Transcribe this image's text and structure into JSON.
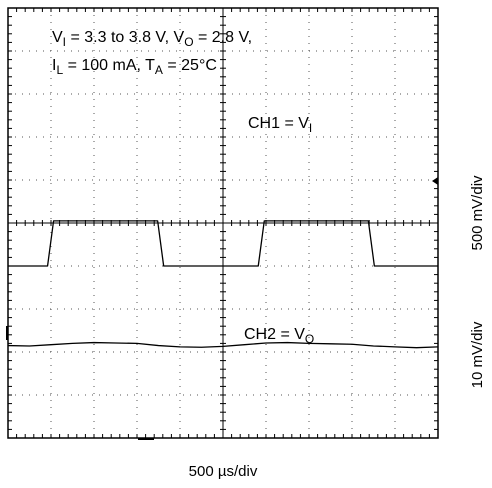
{
  "chart_data": {
    "type": "line",
    "title": "",
    "annotations": {
      "condition_line1": {
        "vi_sym": "V",
        "vi_sub": "I",
        "vi_range": " = 3.3  to 3.8 V, ",
        "vo_sym": "V",
        "vo_sub": "O",
        "vo_value": " = 2.8 V,"
      },
      "condition_line2": {
        "il_sym": "I",
        "il_sub": "L",
        "il_value": " = 100 mA, ",
        "ta_sym": "T",
        "ta_sub": "A",
        "ta_value": " = 25°C"
      },
      "ch1_label": {
        "prefix": "CH1 = V",
        "sub": "I"
      },
      "ch2_label": {
        "prefix": "CH2 = V",
        "sub": "O"
      }
    },
    "xlabel": "500  µs/div",
    "ylabel_ch1": "500 mV/div",
    "ylabel_ch2": "10 mV/div",
    "grid": {
      "divisions_x": 10,
      "divisions_y": 10,
      "minor_per_div": 5
    },
    "xlim": [
      0,
      10
    ],
    "ylim": [
      0,
      10
    ],
    "series": [
      {
        "name": "CH1 = VI",
        "color": "#000000",
        "x": [
          0,
          0.92,
          1.06,
          3.48,
          3.62,
          5.82,
          5.96,
          8.38,
          8.52,
          10
        ],
        "y": [
          4.0,
          4.0,
          5.05,
          5.05,
          4.0,
          4.0,
          5.05,
          5.05,
          4.0,
          4.0
        ]
      },
      {
        "name": "CH2 = VO",
        "color": "#000000",
        "x": [
          0,
          0.5,
          1.0,
          1.5,
          2.0,
          2.5,
          3.0,
          3.5,
          4.0,
          4.5,
          5.0,
          5.5,
          6.0,
          6.5,
          7.0,
          7.5,
          8.0,
          8.5,
          9.0,
          9.5,
          10
        ],
        "y": [
          2.15,
          2.14,
          2.17,
          2.2,
          2.22,
          2.21,
          2.2,
          2.15,
          2.12,
          2.11,
          2.13,
          2.17,
          2.21,
          2.22,
          2.2,
          2.19,
          2.18,
          2.14,
          2.12,
          2.1,
          2.12
        ]
      }
    ]
  }
}
